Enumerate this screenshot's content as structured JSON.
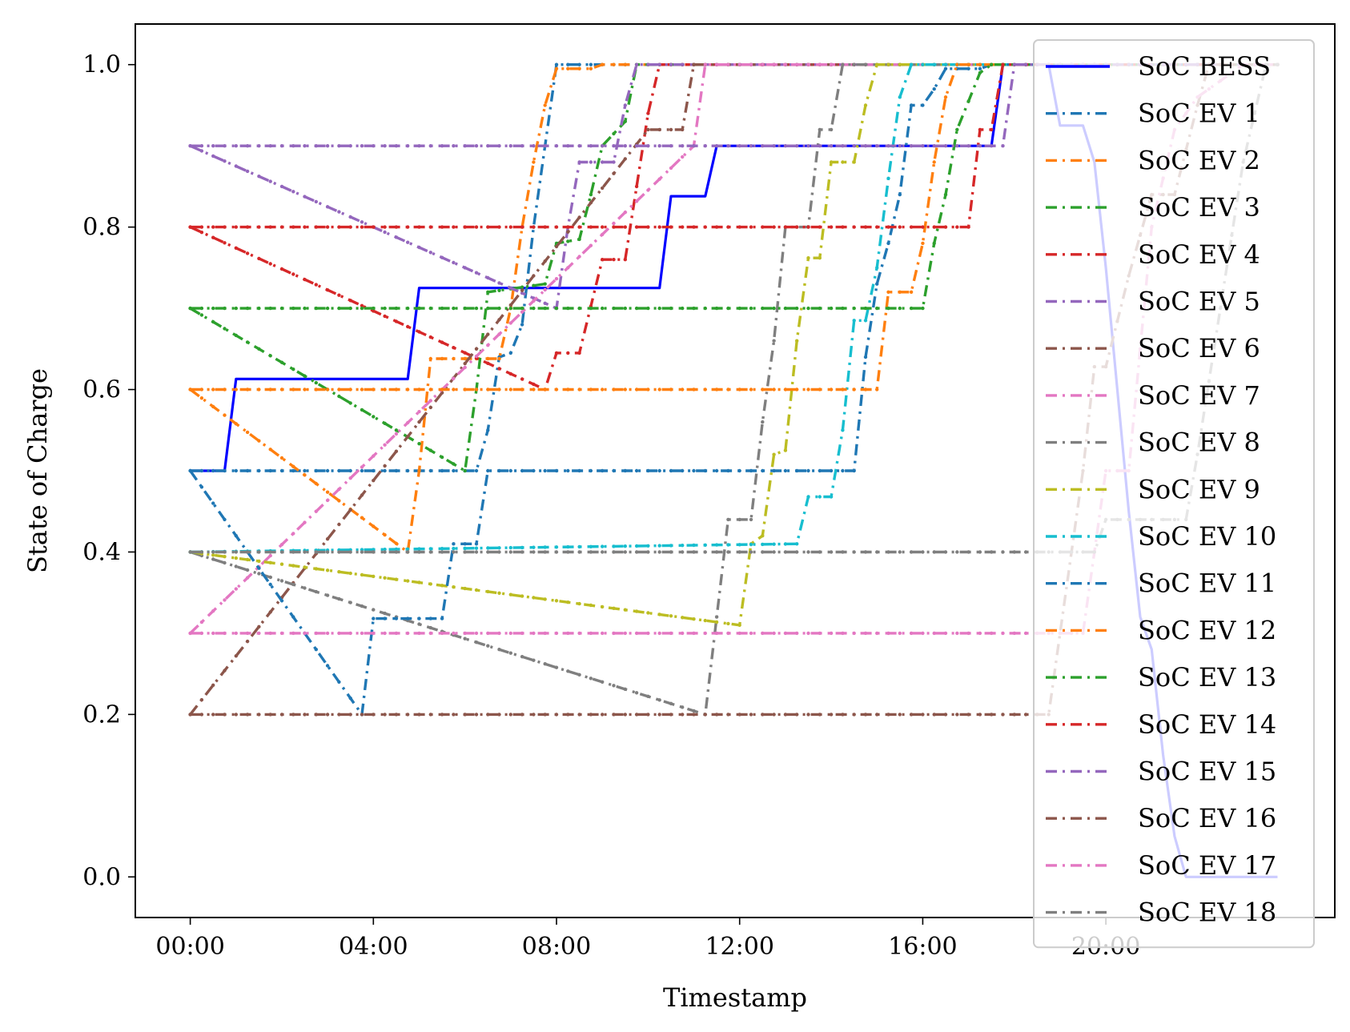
{
  "chart_data": {
    "type": "line",
    "title": "",
    "xlabel": "Timestamp",
    "ylabel": "State of Charge",
    "xlim": [
      -1.2,
      25.0
    ],
    "ylim": [
      -0.05,
      1.05
    ],
    "x_ticks": [
      0,
      4,
      8,
      12,
      16,
      20
    ],
    "x_tick_labels": [
      "00:00",
      "04:00",
      "08:00",
      "12:00",
      "16:00",
      "20:00"
    ],
    "y_ticks": [
      0.0,
      0.2,
      0.4,
      0.6,
      0.8,
      1.0
    ],
    "y_tick_labels": [
      "0.0",
      "0.2",
      "0.4",
      "0.6",
      "0.8",
      "1.0"
    ],
    "grid": false,
    "legend_position": "right",
    "series": [
      {
        "name": "SoC BESS",
        "color": "#0000ff",
        "style": "solid",
        "points": [
          [
            0,
            0.5
          ],
          [
            0.75,
            0.5
          ],
          [
            1,
            0.613
          ],
          [
            4.75,
            0.613
          ],
          [
            5,
            0.725
          ],
          [
            10.25,
            0.725
          ],
          [
            10.5,
            0.838
          ],
          [
            11.25,
            0.838
          ],
          [
            11.5,
            0.9
          ],
          [
            17.5,
            0.9
          ],
          [
            17.75,
            1.0
          ],
          [
            18.75,
            1.0
          ],
          [
            19,
            0.925
          ],
          [
            19.5,
            0.925
          ],
          [
            19.75,
            0.88
          ],
          [
            20,
            0.75
          ],
          [
            20.25,
            0.6
          ],
          [
            20.5,
            0.45
          ],
          [
            20.75,
            0.32
          ],
          [
            21,
            0.28
          ],
          [
            21.25,
            0.15
          ],
          [
            21.5,
            0.05
          ],
          [
            21.75,
            0.0
          ],
          [
            23.75,
            0.0
          ]
        ]
      },
      {
        "name": "SoC EV 1",
        "color": "#1f77b4",
        "style": "dashdot",
        "points": [
          [
            0,
            0.5
          ],
          [
            6.25,
            0.5
          ],
          [
            6.5,
            0.55
          ],
          [
            6.75,
            0.64
          ],
          [
            7,
            0.645
          ],
          [
            7.25,
            0.68
          ],
          [
            7.5,
            0.8
          ],
          [
            7.75,
            0.9
          ],
          [
            8,
            1.0
          ],
          [
            23.75,
            1.0
          ]
        ]
      },
      {
        "name": "SoC EV 2",
        "color": "#ff7f0e",
        "style": "dashdot",
        "points": [
          [
            0,
            0.6
          ],
          [
            4.75,
            0.4
          ],
          [
            5,
            0.5
          ],
          [
            5.25,
            0.638
          ],
          [
            6.75,
            0.638
          ],
          [
            7,
            0.7
          ],
          [
            7.25,
            0.8
          ],
          [
            7.5,
            0.88
          ],
          [
            7.75,
            0.95
          ],
          [
            8,
            0.995
          ],
          [
            8.75,
            0.995
          ],
          [
            9,
            1.0
          ],
          [
            23.75,
            1.0
          ]
        ]
      },
      {
        "name": "SoC EV 3",
        "color": "#2ca02c",
        "style": "dashdot",
        "points": [
          [
            0,
            0.7
          ],
          [
            6,
            0.5
          ],
          [
            6.25,
            0.6
          ],
          [
            6.5,
            0.72
          ],
          [
            7.75,
            0.73
          ],
          [
            8,
            0.78
          ],
          [
            8.5,
            0.785
          ],
          [
            8.75,
            0.84
          ],
          [
            9,
            0.9
          ],
          [
            9.5,
            0.93
          ],
          [
            9.75,
            1.0
          ],
          [
            23.75,
            1.0
          ]
        ]
      },
      {
        "name": "SoC EV 4",
        "color": "#d62728",
        "style": "dashdot",
        "points": [
          [
            0,
            0.8
          ],
          [
            7.75,
            0.6
          ],
          [
            8,
            0.645
          ],
          [
            8.5,
            0.645
          ],
          [
            9,
            0.76
          ],
          [
            9.5,
            0.76
          ],
          [
            9.75,
            0.85
          ],
          [
            10,
            0.94
          ],
          [
            10.25,
            1.0
          ],
          [
            23.75,
            1.0
          ]
        ]
      },
      {
        "name": "SoC EV 5",
        "color": "#9467bd",
        "style": "dashdot",
        "points": [
          [
            0,
            0.9
          ],
          [
            8,
            0.7
          ],
          [
            8.25,
            0.8
          ],
          [
            8.5,
            0.88
          ],
          [
            9.25,
            0.88
          ],
          [
            9.5,
            0.95
          ],
          [
            9.75,
            1.0
          ],
          [
            23.75,
            1.0
          ]
        ]
      },
      {
        "name": "SoC EV 6",
        "color": "#8c564b",
        "style": "dashdot",
        "points": [
          [
            0,
            0.2
          ],
          [
            10,
            0.92
          ],
          [
            10.75,
            0.92
          ],
          [
            11,
            1.0
          ],
          [
            23.75,
            1.0
          ]
        ]
      },
      {
        "name": "SoC EV 7",
        "color": "#e377c2",
        "style": "dashdot",
        "points": [
          [
            0,
            0.3
          ],
          [
            11,
            0.9
          ],
          [
            11.25,
            1.0
          ],
          [
            23.75,
            1.0
          ]
        ]
      },
      {
        "name": "SoC EV 8",
        "color": "#7f7f7f",
        "style": "dashdot",
        "points": [
          [
            0,
            0.4
          ],
          [
            11.25,
            0.2
          ],
          [
            11.5,
            0.32
          ],
          [
            11.75,
            0.44
          ],
          [
            12.25,
            0.44
          ],
          [
            12.5,
            0.56
          ],
          [
            12.75,
            0.66
          ],
          [
            13,
            0.8
          ],
          [
            13.5,
            0.8
          ],
          [
            13.75,
            0.92
          ],
          [
            14,
            0.92
          ],
          [
            14.25,
            1.0
          ],
          [
            23.75,
            1.0
          ]
        ]
      },
      {
        "name": "SoC EV 9",
        "color": "#bcbd22",
        "style": "dashdot",
        "points": [
          [
            0,
            0.4
          ],
          [
            12,
            0.31
          ],
          [
            12.25,
            0.41
          ],
          [
            12.5,
            0.42
          ],
          [
            12.75,
            0.52
          ],
          [
            13,
            0.525
          ],
          [
            13.25,
            0.66
          ],
          [
            13.5,
            0.762
          ],
          [
            13.75,
            0.762
          ],
          [
            14,
            0.88
          ],
          [
            14.5,
            0.88
          ],
          [
            14.75,
            0.95
          ],
          [
            15,
            1.0
          ],
          [
            23.75,
            1.0
          ]
        ]
      },
      {
        "name": "SoC EV 10",
        "color": "#17becf",
        "style": "dashdot",
        "points": [
          [
            0,
            0.4
          ],
          [
            13.25,
            0.41
          ],
          [
            13.5,
            0.468
          ],
          [
            14,
            0.468
          ],
          [
            14.25,
            0.55
          ],
          [
            14.5,
            0.685
          ],
          [
            14.75,
            0.685
          ],
          [
            15,
            0.75
          ],
          [
            15.25,
            0.86
          ],
          [
            15.5,
            0.96
          ],
          [
            15.75,
            1.0
          ],
          [
            23.75,
            1.0
          ]
        ]
      },
      {
        "name": "SoC EV 11",
        "color": "#1f77b4",
        "style": "dashdot",
        "points": [
          [
            0,
            0.5
          ],
          [
            3.75,
            0.2
          ],
          [
            4,
            0.318
          ],
          [
            5.5,
            0.318
          ],
          [
            5.75,
            0.41
          ],
          [
            6.25,
            0.41
          ],
          [
            6.5,
            0.5
          ],
          [
            14.5,
            0.5
          ],
          [
            14.75,
            0.64
          ],
          [
            15,
            0.73
          ],
          [
            15.25,
            0.78
          ],
          [
            15.5,
            0.84
          ],
          [
            15.75,
            0.95
          ],
          [
            16,
            0.95
          ],
          [
            16.25,
            0.97
          ],
          [
            16.5,
            0.995
          ],
          [
            17.25,
            0.995
          ],
          [
            17.5,
            1.0
          ],
          [
            23.75,
            1.0
          ]
        ]
      },
      {
        "name": "SoC EV 12",
        "color": "#ff7f0e",
        "style": "dashdot",
        "points": [
          [
            0,
            0.6
          ],
          [
            15,
            0.6
          ],
          [
            15.25,
            0.72
          ],
          [
            15.75,
            0.72
          ],
          [
            16,
            0.78
          ],
          [
            16.25,
            0.88
          ],
          [
            16.5,
            0.96
          ],
          [
            16.75,
            1.0
          ],
          [
            23.75,
            1.0
          ]
        ]
      },
      {
        "name": "SoC EV 13",
        "color": "#2ca02c",
        "style": "dashdot",
        "points": [
          [
            0,
            0.7
          ],
          [
            16,
            0.7
          ],
          [
            16.25,
            0.78
          ],
          [
            16.5,
            0.84
          ],
          [
            16.75,
            0.92
          ],
          [
            17,
            0.955
          ],
          [
            17.25,
            0.99
          ],
          [
            17.5,
            1.0
          ],
          [
            23.75,
            1.0
          ]
        ]
      },
      {
        "name": "SoC EV 14",
        "color": "#d62728",
        "style": "dashdot",
        "points": [
          [
            0,
            0.8
          ],
          [
            17,
            0.8
          ],
          [
            17.25,
            0.92
          ],
          [
            17.5,
            0.92
          ],
          [
            17.75,
            1.0
          ],
          [
            23.75,
            1.0
          ]
        ]
      },
      {
        "name": "SoC EV 15",
        "color": "#9467bd",
        "style": "dashdot",
        "points": [
          [
            0,
            0.9
          ],
          [
            17.75,
            0.9
          ],
          [
            18,
            1.0
          ],
          [
            23.75,
            1.0
          ]
        ]
      },
      {
        "name": "SoC EV 16",
        "color": "#8c564b",
        "style": "dashdot",
        "points": [
          [
            0,
            0.2
          ],
          [
            18.75,
            0.2
          ],
          [
            19,
            0.3
          ],
          [
            19.25,
            0.4
          ],
          [
            19.5,
            0.5
          ],
          [
            19.75,
            0.628
          ],
          [
            20,
            0.628
          ],
          [
            20.5,
            0.74
          ],
          [
            21,
            0.84
          ],
          [
            21.5,
            0.84
          ],
          [
            22,
            0.95
          ],
          [
            22.25,
            1.0
          ],
          [
            23.75,
            1.0
          ]
        ]
      },
      {
        "name": "SoC EV 17",
        "color": "#e377c2",
        "style": "dashdot",
        "points": [
          [
            0,
            0.3
          ],
          [
            19.5,
            0.3
          ],
          [
            19.75,
            0.4
          ],
          [
            20,
            0.5
          ],
          [
            20.5,
            0.5
          ],
          [
            20.75,
            0.65
          ],
          [
            21,
            0.8
          ],
          [
            21.5,
            0.92
          ],
          [
            22,
            0.96
          ],
          [
            22.5,
            0.98
          ],
          [
            23,
            1.0
          ],
          [
            23.75,
            1.0
          ]
        ]
      },
      {
        "name": "SoC EV 18",
        "color": "#7f7f7f",
        "style": "dashdot",
        "points": [
          [
            0,
            0.4
          ],
          [
            19.75,
            0.4
          ],
          [
            20,
            0.44
          ],
          [
            21.75,
            0.44
          ],
          [
            22,
            0.52
          ],
          [
            22.5,
            0.7
          ],
          [
            23,
            0.88
          ],
          [
            23.5,
            1.0
          ],
          [
            23.75,
            1.0
          ]
        ]
      }
    ]
  }
}
